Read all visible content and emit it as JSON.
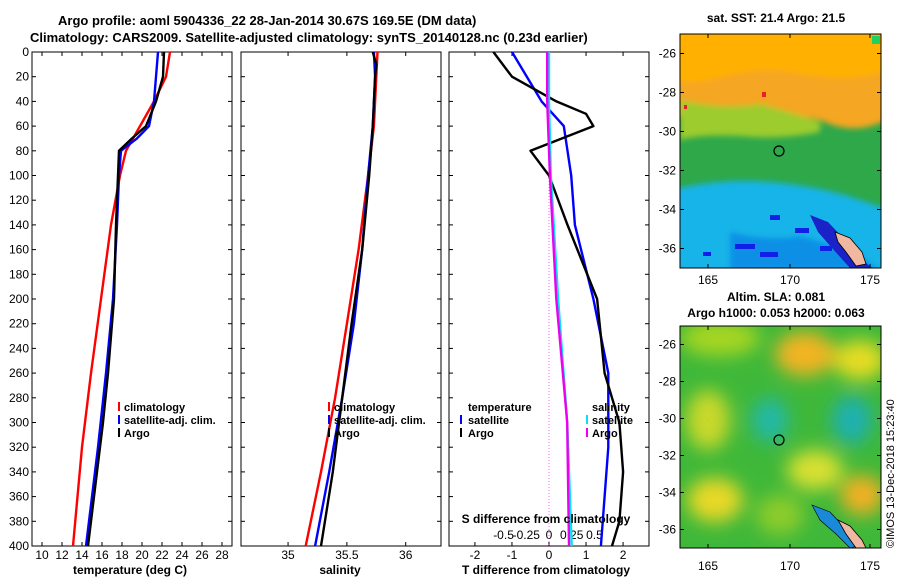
{
  "header": {
    "title1": "Argo profile: aoml 5904336_22 28-Jan-2014 30.67S 169.5E (DM data)",
    "title2": "Climatology: CARS2009. Satellite-adjusted climatology: synTS_20140128.nc (0.23d earlier)"
  },
  "colors": {
    "climatology": "#ff0000",
    "satellite": "#0000ff",
    "argo": "#000000",
    "s_satellite": "#00e5ee",
    "s_climatology": "#ee00ee"
  },
  "depth_axis": {
    "ylim": [
      0,
      400
    ],
    "ticks": [
      "0",
      "20",
      "40",
      "60",
      "80",
      "100",
      "120",
      "140",
      "160",
      "180",
      "200",
      "220",
      "240",
      "260",
      "280",
      "300",
      "320",
      "340",
      "360",
      "380",
      "400"
    ]
  },
  "chart_data": [
    {
      "type": "line",
      "name": "temperature",
      "xlabel": "temperature (deg C)",
      "xlim": [
        9,
        29
      ],
      "xticks": [
        "10",
        "12",
        "14",
        "16",
        "18",
        "20",
        "22",
        "24",
        "26",
        "28"
      ],
      "series": [
        {
          "name": "climatology",
          "depth": [
            0,
            20,
            40,
            60,
            80,
            100,
            140,
            200,
            260,
            320,
            400
          ],
          "values": [
            22.8,
            22.4,
            21.2,
            19.8,
            18.4,
            17.8,
            16.9,
            15.9,
            14.9,
            14.0,
            13.1
          ]
        },
        {
          "name": "satellite-adj. clim.",
          "depth": [
            0,
            20,
            40,
            60,
            70,
            80,
            100,
            140,
            200,
            260,
            320,
            400
          ],
          "values": [
            21.6,
            21.4,
            21.2,
            20.7,
            19.5,
            17.9,
            17.7,
            17.5,
            17.1,
            16.4,
            15.6,
            14.4
          ]
        },
        {
          "name": "Argo",
          "depth": [
            0,
            20,
            40,
            60,
            70,
            80,
            100,
            140,
            200,
            260,
            300,
            340,
            380,
            400
          ],
          "values": [
            22.2,
            22.1,
            21.4,
            20.4,
            19.0,
            17.7,
            17.6,
            17.4,
            17.2,
            16.6,
            16.1,
            15.5,
            14.9,
            14.6
          ]
        }
      ],
      "legend": [
        "climatology",
        "satellite-adj. clim.",
        "Argo"
      ]
    },
    {
      "type": "line",
      "name": "salinity",
      "xlabel": "salinity",
      "xlim": [
        34.6,
        36.3
      ],
      "xticks": [
        "35",
        "35.5",
        "36"
      ],
      "series": [
        {
          "name": "climatology",
          "depth": [
            0,
            20,
            60,
            100,
            160,
            220,
            280,
            340,
            400
          ],
          "values": [
            35.76,
            35.75,
            35.73,
            35.68,
            35.6,
            35.5,
            35.4,
            35.28,
            35.15
          ]
        },
        {
          "name": "satellite-adj. clim.",
          "depth": [
            0,
            20,
            60,
            100,
            160,
            220,
            280,
            340,
            400
          ],
          "values": [
            35.73,
            35.74,
            35.72,
            35.68,
            35.63,
            35.56,
            35.46,
            35.35,
            35.23
          ]
        },
        {
          "name": "Argo",
          "depth": [
            0,
            10,
            20,
            60,
            100,
            160,
            220,
            280,
            340,
            400
          ],
          "values": [
            35.72,
            35.75,
            35.74,
            35.72,
            35.69,
            35.63,
            35.54,
            35.46,
            35.38,
            35.28
          ]
        }
      ],
      "legend": [
        "climatology",
        "satellite-adj. clim.",
        "Argo"
      ]
    },
    {
      "type": "line",
      "name": "difference",
      "xlabel": "T difference from climatology",
      "xlim": [
        -2.7,
        2.7
      ],
      "xticks": [
        "-2",
        "-1",
        "0",
        "1",
        "2"
      ],
      "top_label": "S difference from climatology",
      "s_ticks": [
        "-0.5",
        "-0.25",
        "0",
        "0.25",
        "0.5"
      ],
      "series": [
        {
          "name": "T satellite",
          "depth": [
            0,
            40,
            60,
            100,
            140,
            200,
            260,
            320,
            360,
            400
          ],
          "values": [
            -1.0,
            -0.2,
            0.4,
            0.6,
            0.7,
            1.2,
            1.6,
            1.6,
            1.5,
            1.4
          ]
        },
        {
          "name": "T Argo",
          "depth": [
            0,
            20,
            40,
            50,
            60,
            80,
            100,
            140,
            200,
            260,
            300,
            340,
            380,
            400
          ],
          "values": [
            -1.5,
            -1.0,
            0.2,
            1.0,
            1.2,
            -0.5,
            0.0,
            0.5,
            1.3,
            1.5,
            1.9,
            2.0,
            1.9,
            1.7
          ]
        },
        {
          "name": "S satellite",
          "depth": [
            0,
            40,
            100,
            200,
            300,
            400
          ],
          "values": [
            0.0,
            0.0,
            0.02,
            0.1,
            0.2,
            0.25
          ]
        },
        {
          "name": "S Argo",
          "depth": [
            0,
            40,
            100,
            200,
            300,
            400
          ],
          "values": [
            -0.02,
            -0.02,
            0.01,
            0.08,
            0.2,
            0.22
          ]
        }
      ],
      "legend_left": [
        "temperature",
        "satellite",
        "Argo"
      ],
      "legend_right": [
        "salinity",
        "satellite",
        "Argo"
      ]
    }
  ],
  "sst_map": {
    "title": "sat. SST: 21.4 Argo: 21.5",
    "yticks": [
      "-26",
      "-28",
      "-30",
      "-32",
      "-34",
      "-36"
    ],
    "xticks": [
      "165",
      "170",
      "175"
    ]
  },
  "sla_map": {
    "title1": "Altim. SLA: 0.081",
    "title2": "Argo h1000: 0.053 h2000: 0.063",
    "yticks": [
      "-26",
      "-28",
      "-30",
      "-32",
      "-34",
      "-36"
    ],
    "xticks": [
      "165",
      "170",
      "175"
    ]
  },
  "footer": {
    "credit": "©IMOS 13-Dec-2018 15:23:40"
  }
}
